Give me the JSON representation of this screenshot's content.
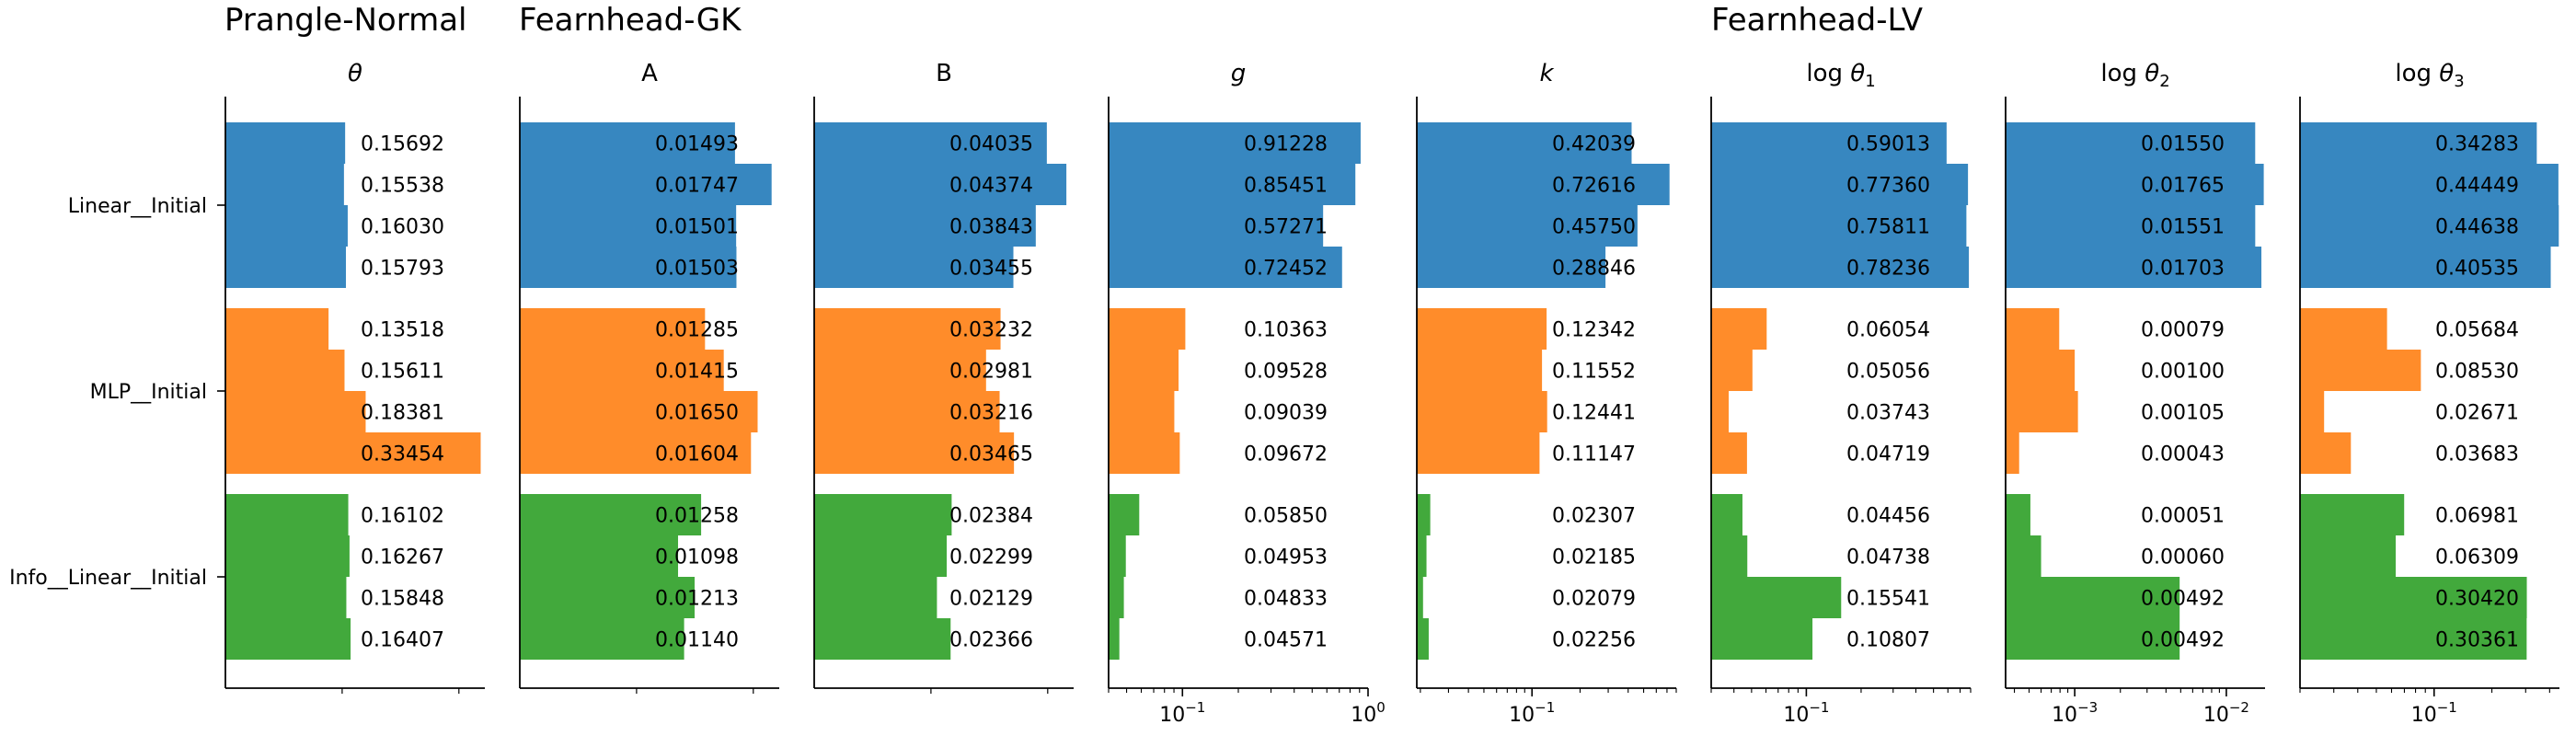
{
  "colors": {
    "linear": "#3787c0",
    "mlp": "#ff8c2a",
    "info": "#42a93c",
    "axis": "#000000"
  },
  "group_titles": {
    "prangle": "Prangle-Normal",
    "gk": "Fearnhead-GK",
    "lv": "Fearnhead-LV"
  },
  "chart_data": {
    "type": "bar",
    "orientation": "horizontal",
    "groups": [
      "Linear__Initial",
      "MLP__Initial",
      "Info__Linear__Initial"
    ],
    "bars_per_group": 4,
    "legend": "none",
    "grid": false,
    "panels": [
      {
        "id": "theta",
        "group": "Prangle-Normal",
        "title": "θ",
        "math": null,
        "scale": "linear",
        "xlim": [
          0,
          0.34
        ],
        "ticks": [],
        "values": [
          [
            0.15692,
            0.15538,
            0.1603,
            0.15793
          ],
          [
            0.13518,
            0.15611,
            0.18381,
            0.33454
          ],
          [
            0.16102,
            0.16267,
            0.15848,
            0.16407
          ]
        ],
        "labels": [
          [
            "0.15692",
            "0.15538",
            "0.16030",
            "0.15793"
          ],
          [
            "0.13518",
            "0.15611",
            "0.18381",
            "0.33454"
          ],
          [
            "0.16102",
            "0.16267",
            "0.15848",
            "0.16407"
          ]
        ]
      },
      {
        "id": "A",
        "group": "Fearnhead-GK",
        "title": "A",
        "math": null,
        "scale": "linear",
        "xlim": [
          0,
          0.018
        ],
        "ticks": [],
        "values": [
          [
            0.01493,
            0.01747,
            0.01501,
            0.01503
          ],
          [
            0.01285,
            0.01415,
            0.0165,
            0.01604
          ],
          [
            0.01258,
            0.01098,
            0.01213,
            0.0114
          ]
        ],
        "labels": [
          [
            "0.01493",
            "0.01747",
            "0.01501",
            "0.01503"
          ],
          [
            "0.01285",
            "0.01415",
            "0.01650",
            "0.01604"
          ],
          [
            "0.01258",
            "0.01098",
            "0.01213",
            "0.01140"
          ]
        ]
      },
      {
        "id": "B",
        "group": "Fearnhead-GK",
        "title": "B",
        "math": null,
        "scale": "linear",
        "xlim": [
          0,
          0.045
        ],
        "ticks": [],
        "values": [
          [
            0.04035,
            0.04374,
            0.03843,
            0.03455
          ],
          [
            0.03232,
            0.02981,
            0.03216,
            0.03465
          ],
          [
            0.02384,
            0.02299,
            0.02129,
            0.02366
          ]
        ],
        "labels": [
          [
            "0.04035",
            "0.04374",
            "0.03843",
            "0.03455"
          ],
          [
            "0.03232",
            "0.02981",
            "0.03216",
            "0.03465"
          ],
          [
            "0.02384",
            "0.02299",
            "0.02129",
            "0.02366"
          ]
        ]
      },
      {
        "id": "g",
        "group": "Fearnhead-GK",
        "title": "g",
        "math": null,
        "scale": "log",
        "xlim": [
          0.04,
          1.0
        ],
        "ticks": [
          {
            "value": 0.1,
            "base": "10",
            "exp": "−1"
          },
          {
            "value": 1.0,
            "base": "10",
            "exp": "0"
          }
        ],
        "values": [
          [
            0.91228,
            0.85451,
            0.57271,
            0.72452
          ],
          [
            0.10363,
            0.09528,
            0.09039,
            0.09672
          ],
          [
            0.0585,
            0.04953,
            0.04833,
            0.04571
          ]
        ],
        "labels": [
          [
            "0.91228",
            "0.85451",
            "0.57271",
            "0.72452"
          ],
          [
            "0.10363",
            "0.09528",
            "0.09039",
            "0.09672"
          ],
          [
            "0.05850",
            "0.04953",
            "0.04833",
            "0.04571"
          ]
        ]
      },
      {
        "id": "k",
        "group": "Fearnhead-GK",
        "title": "k",
        "math": null,
        "scale": "log",
        "xlim": [
          0.019,
          0.8
        ],
        "ticks": [
          {
            "value": 0.1,
            "base": "10",
            "exp": "−1"
          }
        ],
        "values": [
          [
            0.42039,
            0.72616,
            0.4575,
            0.28846
          ],
          [
            0.12342,
            0.11552,
            0.12441,
            0.11147
          ],
          [
            0.02307,
            0.02185,
            0.02079,
            0.02256
          ]
        ],
        "labels": [
          [
            "0.42039",
            "0.72616",
            "0.45750",
            "0.28846"
          ],
          [
            "0.12342",
            "0.11552",
            "0.12441",
            "0.11147"
          ],
          [
            "0.02307",
            "0.02185",
            "0.02079",
            "0.02256"
          ]
        ]
      },
      {
        "id": "logtheta1",
        "group": "Fearnhead-LV",
        "title": "log",
        "math": {
          "sym": "θ",
          "sub": "1"
        },
        "scale": "log",
        "xlim": [
          0.03,
          0.8
        ],
        "ticks": [
          {
            "value": 0.1,
            "base": "10",
            "exp": "−1"
          }
        ],
        "values": [
          [
            0.59013,
            0.7736,
            0.75811,
            0.78236
          ],
          [
            0.06054,
            0.05056,
            0.03743,
            0.04719
          ],
          [
            0.04456,
            0.04738,
            0.15541,
            0.10807
          ]
        ],
        "labels": [
          [
            "0.59013",
            "0.77360",
            "0.75811",
            "0.78236"
          ],
          [
            "0.06054",
            "0.05056",
            "0.03743",
            "0.04719"
          ],
          [
            "0.04456",
            "0.04738",
            "0.15541",
            "0.10807"
          ]
        ]
      },
      {
        "id": "logtheta2",
        "group": "Fearnhead-LV",
        "title": "log",
        "math": {
          "sym": "θ",
          "sub": "2"
        },
        "scale": "log",
        "xlim": [
          0.00035,
          0.018
        ],
        "ticks": [
          {
            "value": 0.001,
            "base": "10",
            "exp": "−3"
          },
          {
            "value": 0.01,
            "base": "10",
            "exp": "−2"
          }
        ],
        "values": [
          [
            0.0155,
            0.01765,
            0.01551,
            0.01703
          ],
          [
            0.00079,
            0.001,
            0.00105,
            0.00043
          ],
          [
            0.00051,
            0.0006,
            0.00492,
            0.00492
          ]
        ],
        "labels": [
          [
            "0.01550",
            "0.01765",
            "0.01551",
            "0.01703"
          ],
          [
            "0.00079",
            "0.00100",
            "0.00105",
            "0.00043"
          ],
          [
            "0.00051",
            "0.00060",
            "0.00492",
            "0.00492"
          ]
        ]
      },
      {
        "id": "logtheta3",
        "group": "Fearnhead-LV",
        "title": "log",
        "math": {
          "sym": "θ",
          "sub": "3"
        },
        "scale": "log",
        "xlim": [
          0.02,
          0.45
        ],
        "ticks": [
          {
            "value": 0.1,
            "base": "10",
            "exp": "−1"
          }
        ],
        "values": [
          [
            0.34283,
            0.44449,
            0.44638,
            0.40535
          ],
          [
            0.05684,
            0.0853,
            0.02671,
            0.03683
          ],
          [
            0.06981,
            0.06309,
            0.3042,
            0.30361
          ]
        ],
        "labels": [
          [
            "0.34283",
            "0.44449",
            "0.44638",
            "0.40535"
          ],
          [
            "0.05684",
            "0.08530",
            "0.02671",
            "0.03683"
          ],
          [
            "0.06981",
            "0.06309",
            "0.30420",
            "0.30361"
          ]
        ]
      }
    ]
  }
}
